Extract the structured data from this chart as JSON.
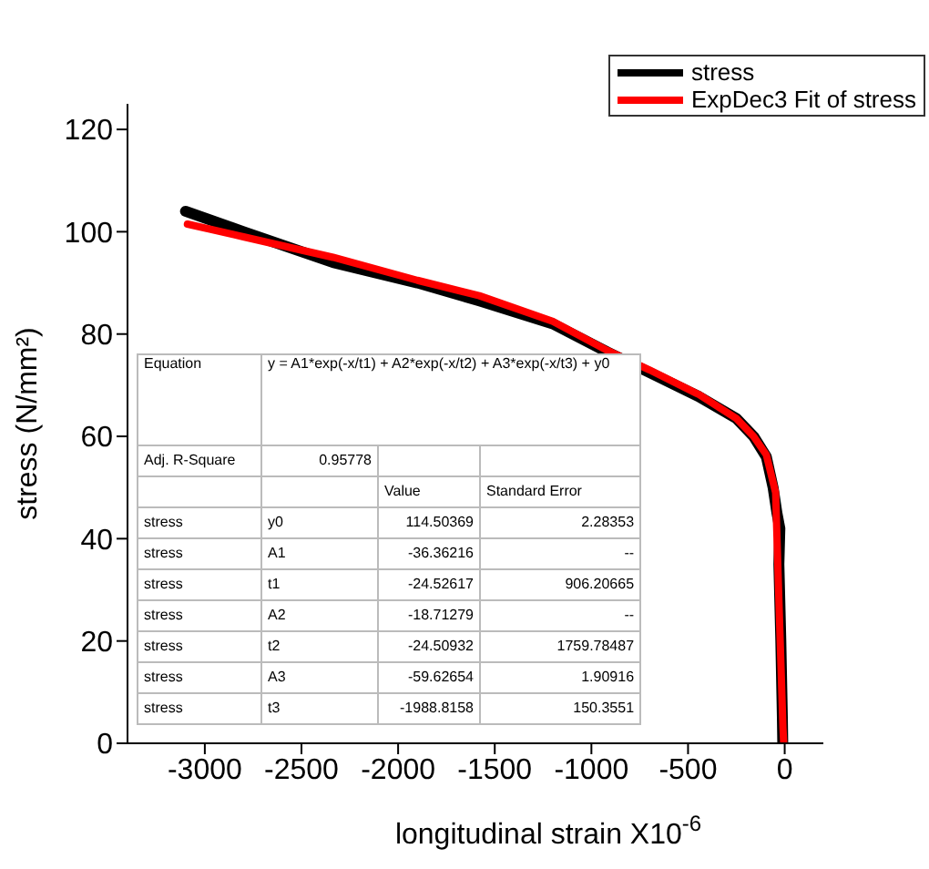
{
  "chart_data": {
    "type": "line",
    "xlabel": "longitudinal strain X10$^{-6}$",
    "ylabel": "stress (N/mm²)",
    "xlim": [
      -3400,
      200
    ],
    "xticks": [
      -3000,
      -2500,
      -2000,
      -1500,
      -1000,
      -500,
      0
    ],
    "ylim": [
      0,
      125
    ],
    "yticks": [
      0,
      20,
      40,
      60,
      80,
      100,
      120
    ],
    "legend": "top right",
    "grid": false,
    "marker": "none",
    "line_style": "solid",
    "series": [
      {
        "name": "stress",
        "color": "#000000",
        "x": [
          -3100,
          -2800,
          -2337,
          -1900,
          -1580,
          -1200,
          -918,
          -700,
          -445,
          -250,
          -161,
          -95,
          -60,
          -40,
          -25,
          -30,
          -20,
          -12,
          -10
        ],
        "values": [
          104,
          100,
          94,
          90,
          86.5,
          82,
          76.5,
          72.5,
          67.8,
          63.5,
          60,
          56,
          50,
          45,
          42,
          35,
          20,
          5,
          0
        ]
      },
      {
        "name": "ExpDec3 Fit of stress",
        "color": "#ff0000",
        "x": [
          -3090,
          -2800,
          -2337,
          -1900,
          -1580,
          -1200,
          -918,
          -700,
          -445,
          -250,
          -161,
          -95,
          -47,
          -30,
          -9,
          -5
        ],
        "values": [
          101.5,
          99,
          95,
          90.5,
          87.5,
          82.5,
          76.8,
          73,
          68.2,
          63.5,
          60,
          56.4,
          49,
          28,
          3,
          0
        ]
      }
    ],
    "annotations": [
      "Equation\ty = A1*exp(-x/t1) + A2*exp(-x/t2) + A3*exp(-x/t3) + y0",
      "Adj. R-Square\t0.95778\t\t",
      "\t\tValue\tStandard Error",
      "stress\ty0\t114.50369\t2.28353",
      "stress\tA1\t-36.36216\t--",
      "stress\tt1\t-24.52617\t906.20665",
      "stress\tA2\t-18.71279\t--",
      "stress\tt2\t-24.50932\t1759.78487",
      "stress\tA3\t-59.62654\t1.90916",
      "stress\tt3\t-1988.8158\t150.3551"
    ]
  }
}
